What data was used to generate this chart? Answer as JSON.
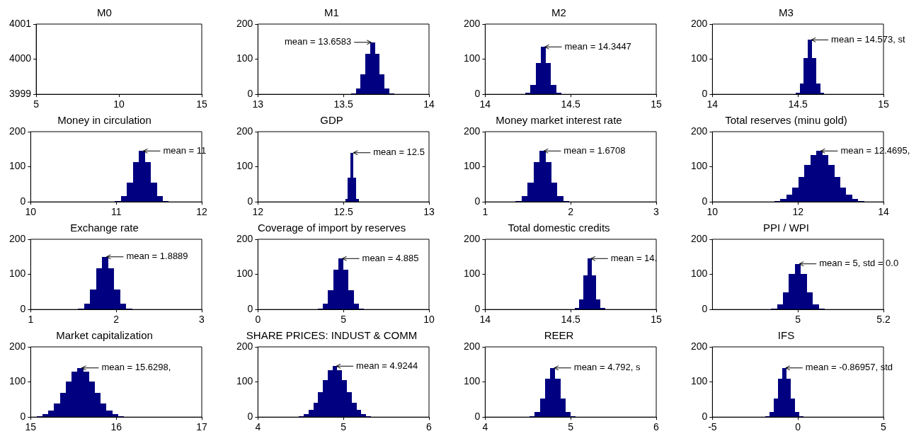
{
  "chart_data": [
    {
      "type": "histogram",
      "title": "M0",
      "color": "#000080",
      "xlim": [
        5,
        15
      ],
      "xticks": [
        5,
        10,
        15
      ],
      "ylim": [
        3999,
        4001
      ],
      "yticks": [
        3999,
        4000,
        4001
      ]
    },
    {
      "type": "histogram",
      "title": "M1",
      "bins": [
        13.544,
        13.572,
        13.6,
        13.628,
        13.656,
        13.684,
        13.712,
        13.74,
        13.768,
        13.796
      ],
      "values": [
        3,
        16,
        56,
        116,
        148,
        116,
        56,
        16,
        3
      ],
      "color": "#000080",
      "xlim": [
        13,
        14
      ],
      "xticks": [
        13,
        13.5,
        14
      ],
      "ylim": [
        0,
        200
      ],
      "yticks": [
        0,
        100,
        200
      ],
      "annotations": [
        {
          "text": "mean = 13.6583",
          "x": 13.67,
          "y": 148
        }
      ]
    },
    {
      "type": "histogram",
      "title": "M2",
      "bins": [
        14.235,
        14.265,
        14.295,
        14.325,
        14.355,
        14.385,
        14.415,
        14.445
      ],
      "values": [
        4,
        27,
        90,
        135,
        90,
        27,
        4
      ],
      "color": "#000080",
      "xlim": [
        14,
        15
      ],
      "xticks": [
        14,
        14.5,
        15
      ],
      "ylim": [
        0,
        200
      ],
      "yticks": [
        0,
        100,
        200
      ],
      "annotations": [
        {
          "text": "mean = 14.3447",
          "x": 14.34,
          "y": 135
        }
      ]
    },
    {
      "type": "histogram",
      "title": "M3",
      "bins": [
        14.486,
        14.51,
        14.534,
        14.558,
        14.582,
        14.606,
        14.63,
        14.654
      ],
      "values": [
        4,
        31,
        103,
        155,
        103,
        31,
        4
      ],
      "color": "#000080",
      "xlim": [
        14,
        15
      ],
      "xticks": [
        14,
        14.5,
        15
      ],
      "ylim": [
        0,
        200
      ],
      "yticks": [
        0,
        100,
        200
      ],
      "annotations": [
        {
          "text": "mean = 14.573, st",
          "x": 14.57,
          "y": 155
        }
      ]
    },
    {
      "type": "histogram",
      "title": "Money in circulation",
      "bins": [
        10.985,
        11.055,
        11.125,
        11.195,
        11.265,
        11.335,
        11.405,
        11.475,
        11.545,
        11.615
      ],
      "values": [
        3,
        16,
        54,
        114,
        145,
        114,
        54,
        16,
        3
      ],
      "color": "#000080",
      "xlim": [
        10,
        12
      ],
      "xticks": [
        10,
        11,
        12
      ],
      "ylim": [
        0,
        200
      ],
      "yticks": [
        0,
        100,
        200
      ],
      "annotations": [
        {
          "text": "mean = 11",
          "x": 11.3,
          "y": 145
        }
      ]
    },
    {
      "type": "histogram",
      "title": "GDP",
      "bins": [
        12.51,
        12.526,
        12.542,
        12.558,
        12.574,
        12.59
      ],
      "values": [
        8,
        68,
        140,
        68,
        8
      ],
      "color": "#000080",
      "xlim": [
        12,
        13
      ],
      "xticks": [
        12,
        12.5,
        13
      ],
      "ylim": [
        0,
        200
      ],
      "yticks": [
        0,
        100,
        200
      ],
      "annotations": [
        {
          "text": "mean = 12.5",
          "x": 12.55,
          "y": 140
        }
      ]
    },
    {
      "type": "histogram",
      "title": "Money market interest rate",
      "bins": [
        1.355,
        1.425,
        1.495,
        1.565,
        1.635,
        1.705,
        1.775,
        1.845,
        1.915,
        1.985
      ],
      "values": [
        3,
        16,
        54,
        114,
        145,
        114,
        54,
        16,
        3
      ],
      "color": "#000080",
      "xlim": [
        1,
        3
      ],
      "xticks": [
        1,
        2,
        3
      ],
      "ylim": [
        0,
        200
      ],
      "yticks": [
        0,
        100,
        200
      ],
      "annotations": [
        {
          "text": "mean = 1.6708",
          "x": 1.67,
          "y": 145
        }
      ]
    },
    {
      "type": "histogram",
      "title": "Total reserves (minu gold)",
      "bins": [
        11.45,
        11.59,
        11.73,
        11.87,
        12.01,
        12.15,
        12.29,
        12.43,
        12.57,
        12.71,
        12.85,
        12.99,
        13.13,
        13.27,
        13.41,
        13.55
      ],
      "values": [
        3,
        8,
        20,
        40,
        71,
        105,
        134,
        145,
        134,
        105,
        71,
        40,
        20,
        8,
        3
      ],
      "color": "#000080",
      "xlim": [
        10,
        14
      ],
      "xticks": [
        10,
        12,
        14
      ],
      "ylim": [
        0,
        200
      ],
      "yticks": [
        0,
        100,
        200
      ],
      "annotations": [
        {
          "text": "mean = 12.4695,",
          "x": 12.5,
          "y": 145
        }
      ]
    },
    {
      "type": "histogram",
      "title": "Exchange rate",
      "bins": [
        1.555,
        1.625,
        1.695,
        1.765,
        1.835,
        1.905,
        1.975,
        2.045,
        2.115,
        2.185
      ],
      "values": [
        3,
        17,
        56,
        117,
        150,
        117,
        56,
        17,
        3
      ],
      "color": "#000080",
      "xlim": [
        1,
        3
      ],
      "xticks": [
        1,
        2,
        3
      ],
      "ylim": [
        0,
        200
      ],
      "yticks": [
        0,
        100,
        200
      ],
      "annotations": [
        {
          "text": "mean = 1.8889",
          "x": 1.87,
          "y": 150
        }
      ]
    },
    {
      "type": "histogram",
      "title": "Coverage of import by reserves",
      "bins": [
        3.5,
        3.8,
        4.1,
        4.4,
        4.7,
        5.0,
        5.3,
        5.6,
        5.9,
        6.2
      ],
      "values": [
        3,
        16,
        54,
        114,
        145,
        114,
        54,
        16,
        3
      ],
      "color": "#000080",
      "xlim": [
        0,
        10
      ],
      "xticks": [
        0,
        5,
        10
      ],
      "ylim": [
        0,
        200
      ],
      "yticks": [
        0,
        100,
        200
      ],
      "annotations": [
        {
          "text": "mean = 4.885",
          "x": 4.85,
          "y": 145
        }
      ]
    },
    {
      "type": "histogram",
      "title": "Total domestic credits",
      "bins": [
        14.525,
        14.55,
        14.575,
        14.6,
        14.625,
        14.65,
        14.675,
        14.7
      ],
      "values": [
        4,
        29,
        97,
        145,
        97,
        29,
        4
      ],
      "color": "#000080",
      "xlim": [
        14,
        15
      ],
      "xticks": [
        14,
        14.5,
        15
      ],
      "ylim": [
        0,
        200
      ],
      "yticks": [
        0,
        100,
        200
      ],
      "annotations": [
        {
          "text": "mean = 14.",
          "x": 14.61,
          "y": 145
        }
      ]
    },
    {
      "type": "histogram",
      "title": "PPI / WPI",
      "bins": [
        4.937,
        4.951,
        4.965,
        4.979,
        4.993,
        5.007,
        5.021,
        5.035,
        5.049,
        5.063
      ],
      "values": [
        3,
        14,
        49,
        102,
        130,
        102,
        49,
        14,
        3
      ],
      "color": "#000080",
      "xlim": [
        4.8,
        5.2
      ],
      "xticks": [
        5,
        5.2
      ],
      "ylim": [
        0,
        200
      ],
      "yticks": [
        0,
        100,
        200
      ],
      "annotations": [
        {
          "text": "mean = 5, std = 0.0",
          "x": 5,
          "y": 130
        }
      ]
    },
    {
      "type": "histogram",
      "title": "Market capitalization",
      "bins": [
        15.07,
        15.138,
        15.206,
        15.274,
        15.342,
        15.41,
        15.478,
        15.546,
        15.614,
        15.682,
        15.75,
        15.818,
        15.886,
        15.954,
        16.022,
        16.09
      ],
      "values": [
        3,
        8,
        19,
        39,
        68,
        102,
        129,
        140,
        129,
        102,
        68,
        39,
        19,
        8,
        3
      ],
      "color": "#000080",
      "xlim": [
        15,
        17
      ],
      "xticks": [
        15,
        16,
        17
      ],
      "ylim": [
        0,
        200
      ],
      "yticks": [
        0,
        100,
        200
      ],
      "annotations": [
        {
          "text": "mean = 15.6298,",
          "x": 15.58,
          "y": 140
        }
      ]
    },
    {
      "type": "histogram",
      "title": "SHARE PRICES: INDUST & COMM",
      "bins": [
        4.48,
        4.536,
        4.592,
        4.648,
        4.704,
        4.76,
        4.816,
        4.872,
        4.928,
        4.984,
        5.04,
        5.096,
        5.152,
        5.208,
        5.264,
        5.32
      ],
      "values": [
        3,
        8,
        20,
        40,
        71,
        105,
        134,
        145,
        134,
        105,
        71,
        40,
        20,
        8,
        3
      ],
      "color": "#000080",
      "xlim": [
        4,
        6
      ],
      "xticks": [
        4,
        5,
        6
      ],
      "ylim": [
        0,
        200
      ],
      "yticks": [
        0,
        100,
        200
      ],
      "annotations": [
        {
          "text": "mean = 4.9244",
          "x": 4.9,
          "y": 145
        }
      ]
    },
    {
      "type": "histogram",
      "title": "REER",
      "bins": [
        4.52,
        4.58,
        4.64,
        4.7,
        4.76,
        4.82,
        4.88,
        4.94,
        5.0,
        5.06
      ],
      "values": [
        3,
        15,
        53,
        110,
        140,
        110,
        53,
        15,
        3
      ],
      "color": "#000080",
      "xlim": [
        4,
        6
      ],
      "xticks": [
        4,
        5,
        6
      ],
      "ylim": [
        0,
        200
      ],
      "yticks": [
        0,
        100,
        200
      ],
      "annotations": [
        {
          "text": "mean = 4.792, s",
          "x": 4.79,
          "y": 140
        }
      ]
    },
    {
      "type": "histogram",
      "title": "IFS",
      "bins": [
        -1.925,
        -1.675,
        -1.425,
        -1.175,
        -0.925,
        -0.675,
        -0.425,
        -0.175,
        0.075,
        0.325
      ],
      "values": [
        3,
        15,
        53,
        110,
        140,
        110,
        53,
        15,
        3
      ],
      "color": "#000080",
      "xlim": [
        -5,
        5
      ],
      "xticks": [
        -5,
        0,
        5
      ],
      "ylim": [
        0,
        200
      ],
      "yticks": [
        0,
        100,
        200
      ],
      "annotations": [
        {
          "text": "mean = -0.86957, std",
          "x": -0.8,
          "y": 140
        }
      ]
    }
  ]
}
